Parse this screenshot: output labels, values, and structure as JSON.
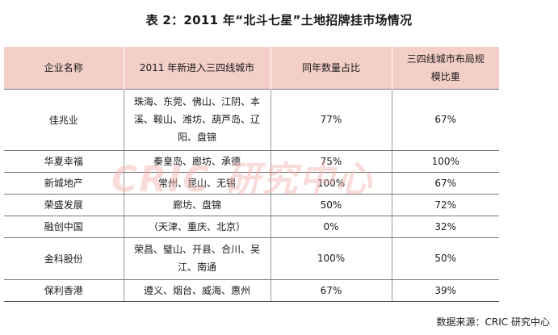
{
  "title": "表 2：2011 年“北斗七星”土地招牌挂市场情况",
  "table": {
    "headers": [
      "企业名称",
      "2011 年新进入三四线城市",
      "同年数量占比",
      "三四线城市布局规模比重"
    ],
    "rows": [
      {
        "company": "佳兆业",
        "cities": "珠海、东莞、佛山、江阴、本溪、鞍山、潍坊、葫芦岛、辽阳、盘锦",
        "share": "77%",
        "weight": "67%"
      },
      {
        "company": "华夏幸福",
        "cities": "秦皇岛、廊坊、承德",
        "share": "75%",
        "weight": "100%"
      },
      {
        "company": "新城地产",
        "cities": "常州、昆山、无锡",
        "share": "100%",
        "weight": "67%"
      },
      {
        "company": "荣盛发展",
        "cities": "廊坊、盘锦",
        "share": "50%",
        "weight": "72%"
      },
      {
        "company": "融创中国",
        "cities": "（天津、重庆、北京）",
        "share": "0%",
        "weight": "32%"
      },
      {
        "company": "金科股份",
        "cities": "荣昌、璧山、开县、合川、吴江、南通",
        "share": "100%",
        "weight": "50%"
      },
      {
        "company": "保利香港",
        "cities": "遵义、烟台、威海、惠州",
        "share": "67%",
        "weight": "39%"
      }
    ]
  },
  "watermark": "CRIC 研究中心",
  "source": "数据来源：CRIC 研究中心"
}
